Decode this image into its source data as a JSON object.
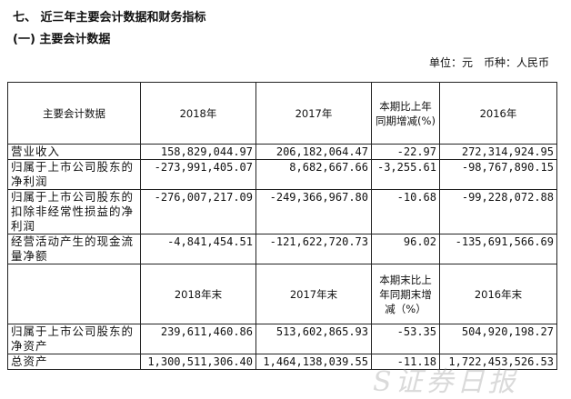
{
  "section_title": "七、 近三年主要会计数据和财务指标",
  "subsection_title": "(一) 主要会计数据",
  "unit_note": "单位：元　币种：人民币",
  "header1": [
    "主要会计数据",
    "2018年",
    "2017年",
    "本期比上年同期增减(%)",
    "2016年"
  ],
  "rows1": [
    [
      "营业收入",
      "158,829,044.97",
      "206,182,064.47",
      "-22.97",
      "272,314,924.95"
    ],
    [
      "归属于上市公司股东的净利润",
      "-273,991,405.07",
      "8,682,667.66",
      "-3,255.61",
      "-98,767,890.15"
    ],
    [
      "归属于上市公司股东的扣除非经常性损益的净利润",
      "-276,007,217.09",
      "-249,366,967.80",
      "-10.68",
      "-99,228,072.88"
    ],
    [
      "经营活动产生的现金流量净额",
      "-4,841,454.51",
      "-121,622,720.73",
      "96.02",
      "-135,691,566.69"
    ]
  ],
  "header2": [
    "",
    "2018年末",
    "2017年末",
    "本期末比上年同期末增减（%）",
    "2016年末"
  ],
  "rows2": [
    [
      "归属于上市公司股东的净资产",
      "239,611,460.86",
      "513,602,865.93",
      "-53.35",
      "504,920,198.27"
    ],
    [
      "总资产",
      "1,300,511,306.40",
      "1,464,138,039.55",
      "-11.18",
      "1,722,453,526.53"
    ]
  ],
  "watermark": "证券日报"
}
